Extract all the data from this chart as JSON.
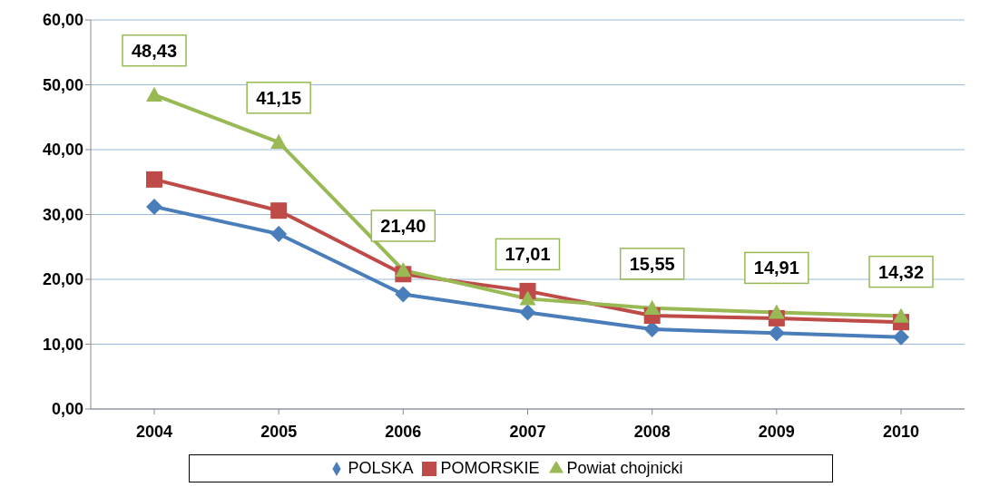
{
  "chart_data": {
    "type": "line",
    "categories": [
      "2004",
      "2005",
      "2006",
      "2007",
      "2008",
      "2009",
      "2010"
    ],
    "series": [
      {
        "name": "POLSKA",
        "color": "#4a7ebb",
        "marker": "diamond",
        "values": [
          31.2,
          27.0,
          17.7,
          14.9,
          12.3,
          11.7,
          11.1
        ]
      },
      {
        "name": "POMORSKIE",
        "color": "#be4b48",
        "marker": "square",
        "values": [
          35.4,
          30.6,
          20.8,
          18.2,
          14.4,
          14.0,
          13.4
        ]
      },
      {
        "name": "Powiat chojnicki",
        "color": "#98b954",
        "marker": "triangle",
        "values": [
          48.43,
          41.15,
          21.4,
          17.01,
          15.55,
          14.91,
          14.32
        ],
        "value_labels": [
          "48,43",
          "41,15",
          "21,40",
          "17,01",
          "15,55",
          "14,91",
          "14,32"
        ]
      }
    ],
    "ylim": [
      0,
      60
    ],
    "yticks": [
      {
        "value": 0,
        "label": "0,00"
      },
      {
        "value": 10,
        "label": "10,00"
      },
      {
        "value": 20,
        "label": "20,00"
      },
      {
        "value": 30,
        "label": "30,00"
      },
      {
        "value": 40,
        "label": "40,00"
      },
      {
        "value": 50,
        "label": "50,00"
      },
      {
        "value": 60,
        "label": "60,00"
      }
    ],
    "grid": "y",
    "legend": "bottom",
    "line_style": "solid"
  }
}
